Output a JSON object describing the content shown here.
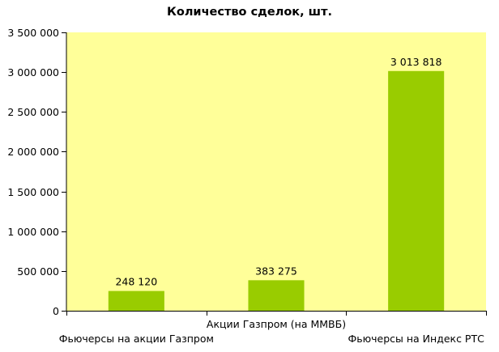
{
  "chart_data": {
    "type": "bar",
    "title": "Количество сделок, шт.",
    "xlabel": "",
    "ylabel": "",
    "categories": [
      "Фьючерсы на акции Газпром",
      "Акции Газпром (на ММВБ)",
      "Фьючерсы на Индекс РТС"
    ],
    "values": [
      248120,
      383275,
      3013818
    ],
    "value_labels": [
      "248 120",
      "383 275",
      "3 013 818"
    ],
    "ylim": [
      0,
      3500000
    ],
    "y_ticks": [
      0,
      500000,
      1000000,
      1500000,
      2000000,
      2500000,
      3000000,
      3500000
    ],
    "y_tick_labels": [
      "0",
      "500 000",
      "1 000 000",
      "1 500 000",
      "2 000 000",
      "2 500 000",
      "3 000 000",
      "3 500 000"
    ],
    "grid": false,
    "legend": "none",
    "colors": {
      "plot_background": "#ffff99",
      "bar": "#99cc00",
      "axis": "#000000"
    }
  }
}
